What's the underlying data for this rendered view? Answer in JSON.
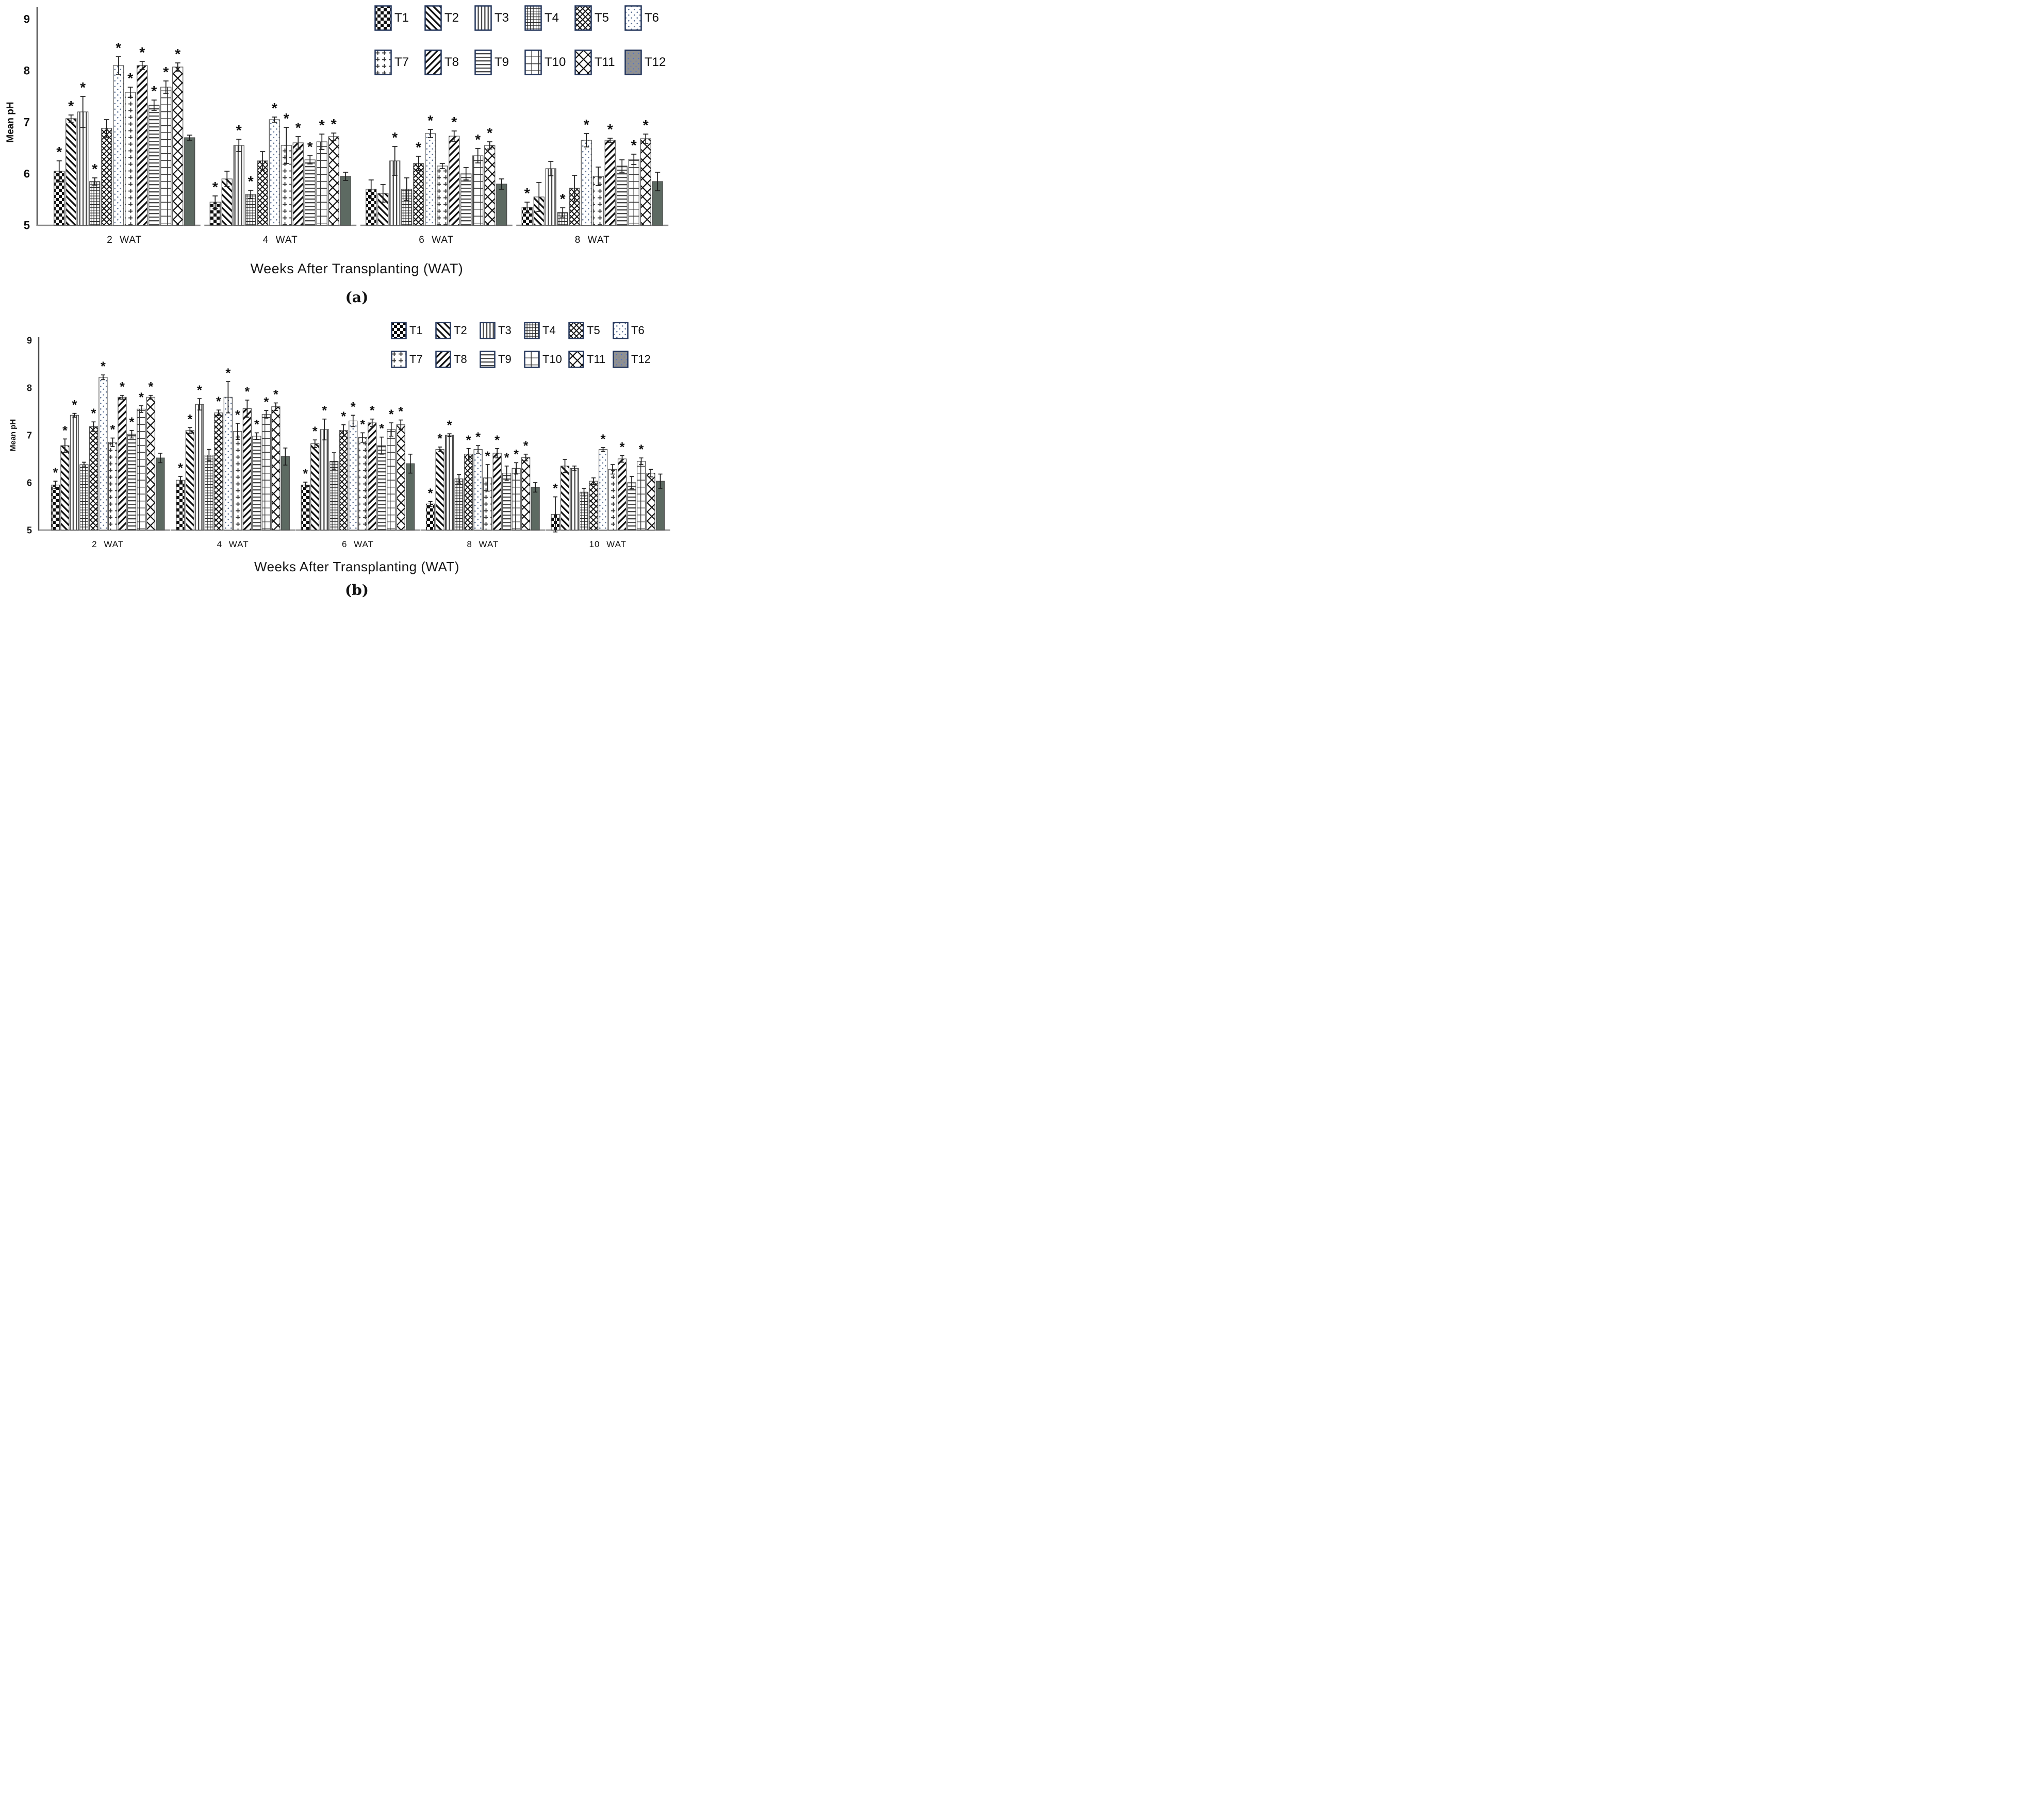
{
  "figure": {
    "x_title": "Weeks After Transplanting (WAT)",
    "y_title": "Mean pH",
    "captions": {
      "a": "(a)",
      "b": "(b)"
    },
    "sig_marker": "*"
  },
  "colors": {
    "axis": "#4f4f4f",
    "baseline": "#8a8a8a",
    "bar_outline": "#4d4d4d",
    "error_bar": "#1c1c1c",
    "text": "#111111",
    "solid_bar": "#5d6a62",
    "legend_border": "#24365c",
    "dot_blue": "#5f7396",
    "legend_t12_fill": "#8f9091",
    "legend_t12_dot": "#4a6fd4"
  },
  "legend": {
    "entries": [
      {
        "label": "T1",
        "pattern": "checkerboard"
      },
      {
        "label": "T2",
        "pattern": "diag-back"
      },
      {
        "label": "T3",
        "pattern": "vert"
      },
      {
        "label": "T4",
        "pattern": "grid-fine"
      },
      {
        "label": "T5",
        "pattern": "cross-dense"
      },
      {
        "label": "T6",
        "pattern": "dots"
      },
      {
        "label": "T7",
        "pattern": "plus"
      },
      {
        "label": "T8",
        "pattern": "diag-fwd"
      },
      {
        "label": "T9",
        "pattern": "horiz"
      },
      {
        "label": "T10",
        "pattern": "grid-large"
      },
      {
        "label": "T11",
        "pattern": "lattice"
      },
      {
        "label": "T12",
        "pattern": "solid"
      }
    ]
  },
  "chart_data": [
    {
      "id": "a",
      "type": "bar",
      "title": "",
      "xlabel": "Weeks After Transplanting (WAT)",
      "ylabel": "Mean pH",
      "ylim": [
        5,
        9
      ],
      "yticks": [
        5,
        6,
        7,
        8,
        9
      ],
      "grid": false,
      "legend_position": "top-right",
      "categories": [
        "2 WAT",
        "4 WAT",
        "6 WAT",
        "8 WAT"
      ],
      "series": [
        {
          "name": "T1",
          "pattern": "checkerboard",
          "values": [
            6.05,
            5.45,
            5.7,
            5.35
          ],
          "errors": [
            0.2,
            0.12,
            0.18,
            0.1
          ],
          "sig": [
            1,
            1,
            0,
            1
          ]
        },
        {
          "name": "T2",
          "pattern": "diag-back",
          "values": [
            7.07,
            5.9,
            5.62,
            5.55
          ],
          "errors": [
            0.07,
            0.15,
            0.17,
            0.28
          ],
          "sig": [
            1,
            0,
            0,
            0
          ]
        },
        {
          "name": "T3",
          "pattern": "vert",
          "values": [
            7.2,
            6.55,
            6.25,
            6.1
          ],
          "errors": [
            0.3,
            0.12,
            0.28,
            0.14
          ],
          "sig": [
            1,
            1,
            1,
            0
          ]
        },
        {
          "name": "T4",
          "pattern": "grid-fine",
          "values": [
            5.85,
            5.6,
            5.7,
            5.25
          ],
          "errors": [
            0.07,
            0.08,
            0.22,
            0.09
          ],
          "sig": [
            1,
            1,
            0,
            1
          ]
        },
        {
          "name": "T5",
          "pattern": "cross-dense",
          "values": [
            6.88,
            6.25,
            6.2,
            5.72
          ],
          "errors": [
            0.17,
            0.18,
            0.14,
            0.25
          ],
          "sig": [
            0,
            0,
            1,
            0
          ]
        },
        {
          "name": "T6",
          "pattern": "dots",
          "values": [
            8.1,
            7.05,
            6.78,
            6.65
          ],
          "errors": [
            0.17,
            0.05,
            0.08,
            0.13
          ],
          "sig": [
            1,
            1,
            1,
            1
          ]
        },
        {
          "name": "T7",
          "pattern": "plus",
          "values": [
            7.58,
            6.55,
            6.15,
            5.95
          ],
          "errors": [
            0.1,
            0.35,
            0.05,
            0.18
          ],
          "sig": [
            1,
            1,
            0,
            0
          ]
        },
        {
          "name": "T8",
          "pattern": "diag-fwd",
          "values": [
            8.1,
            6.6,
            6.73,
            6.65
          ],
          "errors": [
            0.08,
            0.12,
            0.1,
            0.04
          ],
          "sig": [
            1,
            1,
            1,
            1
          ]
        },
        {
          "name": "T9",
          "pattern": "horiz",
          "values": [
            7.33,
            6.27,
            6.0,
            6.15
          ],
          "errors": [
            0.1,
            0.08,
            0.12,
            0.12
          ],
          "sig": [
            1,
            1,
            0,
            0
          ]
        },
        {
          "name": "T10",
          "pattern": "grid-large",
          "values": [
            7.68,
            6.62,
            6.35,
            6.28
          ],
          "errors": [
            0.12,
            0.15,
            0.14,
            0.1
          ],
          "sig": [
            1,
            1,
            1,
            1
          ]
        },
        {
          "name": "T11",
          "pattern": "lattice",
          "values": [
            8.07,
            6.72,
            6.55,
            6.68
          ],
          "errors": [
            0.08,
            0.07,
            0.07,
            0.09
          ],
          "sig": [
            1,
            1,
            1,
            1
          ]
        },
        {
          "name": "T12",
          "pattern": "solid",
          "values": [
            6.7,
            5.95,
            5.8,
            5.85
          ],
          "errors": [
            0.05,
            0.08,
            0.1,
            0.18
          ],
          "sig": [
            0,
            0,
            0,
            0
          ]
        }
      ]
    },
    {
      "id": "b",
      "type": "bar",
      "title": "",
      "xlabel": "Weeks After Transplanting (WAT)",
      "ylabel": "Mean pH",
      "ylim": [
        5,
        9
      ],
      "yticks": [
        5,
        6,
        7,
        8,
        9
      ],
      "grid": false,
      "legend_position": "top-right",
      "categories": [
        "2 WAT",
        "4 WAT",
        "6 WAT",
        "8 WAT",
        "10 WAT"
      ],
      "series": [
        {
          "name": "T1",
          "pattern": "checkerboard",
          "values": [
            5.95,
            6.05,
            5.95,
            5.55,
            5.33
          ],
          "errors": [
            0.08,
            0.08,
            0.06,
            0.05,
            0.37
          ],
          "sig": [
            1,
            1,
            1,
            1,
            1
          ]
        },
        {
          "name": "T2",
          "pattern": "diag-back",
          "values": [
            6.78,
            7.1,
            6.82,
            6.7,
            6.35
          ],
          "errors": [
            0.14,
            0.06,
            0.08,
            0.05,
            0.14
          ],
          "sig": [
            1,
            1,
            1,
            1,
            0
          ]
        },
        {
          "name": "T3",
          "pattern": "vert",
          "values": [
            7.42,
            7.65,
            7.12,
            7.0,
            6.3
          ],
          "errors": [
            0.04,
            0.12,
            0.22,
            0.03,
            0.05
          ],
          "sig": [
            1,
            1,
            1,
            1,
            0
          ]
        },
        {
          "name": "T4",
          "pattern": "grid-fine",
          "values": [
            6.38,
            6.58,
            6.45,
            6.08,
            5.8
          ],
          "errors": [
            0.05,
            0.12,
            0.18,
            0.09,
            0.08
          ],
          "sig": [
            0,
            0,
            0,
            0,
            0
          ]
        },
        {
          "name": "T5",
          "pattern": "cross-dense",
          "values": [
            7.18,
            7.47,
            7.1,
            6.6,
            6.03
          ],
          "errors": [
            0.1,
            0.06,
            0.12,
            0.12,
            0.07
          ],
          "sig": [
            1,
            1,
            1,
            1,
            0
          ]
        },
        {
          "name": "T6",
          "pattern": "dots",
          "values": [
            8.22,
            7.8,
            7.3,
            6.7,
            6.7
          ],
          "errors": [
            0.05,
            0.33,
            0.12,
            0.08,
            0.04
          ],
          "sig": [
            1,
            1,
            1,
            1,
            1
          ]
        },
        {
          "name": "T7",
          "pattern": "plus",
          "values": [
            6.85,
            7.08,
            6.95,
            6.1,
            6.28
          ],
          "errors": [
            0.09,
            0.17,
            0.1,
            0.28,
            0.1
          ],
          "sig": [
            1,
            1,
            1,
            1,
            0
          ]
        },
        {
          "name": "T8",
          "pattern": "diag-fwd",
          "values": [
            7.8,
            7.56,
            7.26,
            6.62,
            6.5
          ],
          "errors": [
            0.04,
            0.18,
            0.08,
            0.1,
            0.07
          ],
          "sig": [
            1,
            1,
            1,
            1,
            1
          ]
        },
        {
          "name": "T9",
          "pattern": "horiz",
          "values": [
            7.02,
            6.98,
            6.78,
            6.2,
            6.0
          ],
          "errors": [
            0.08,
            0.07,
            0.18,
            0.15,
            0.13
          ],
          "sig": [
            1,
            1,
            1,
            1,
            0
          ]
        },
        {
          "name": "T10",
          "pattern": "grid-large",
          "values": [
            7.55,
            7.44,
            7.12,
            6.3,
            6.45
          ],
          "errors": [
            0.07,
            0.08,
            0.14,
            0.12,
            0.07
          ],
          "sig": [
            1,
            1,
            1,
            1,
            1
          ]
        },
        {
          "name": "T11",
          "pattern": "lattice",
          "values": [
            7.8,
            7.6,
            7.22,
            6.53,
            6.2
          ],
          "errors": [
            0.04,
            0.08,
            0.1,
            0.07,
            0.08
          ],
          "sig": [
            1,
            1,
            1,
            1,
            0
          ]
        },
        {
          "name": "T12",
          "pattern": "solid",
          "values": [
            6.52,
            6.55,
            6.4,
            5.9,
            6.03
          ],
          "errors": [
            0.1,
            0.18,
            0.2,
            0.1,
            0.15
          ],
          "sig": [
            0,
            0,
            0,
            0,
            0
          ]
        }
      ]
    }
  ]
}
